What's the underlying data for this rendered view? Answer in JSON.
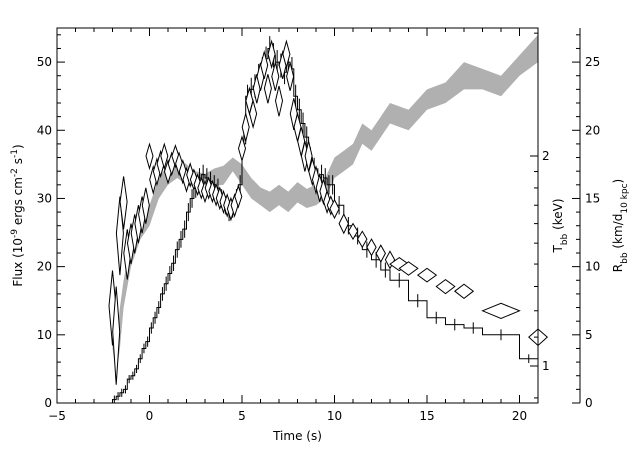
{
  "chart_data": {
    "type": "line",
    "title": "",
    "xlabel": "Time (s)",
    "ylabel_left": {
      "main": "Flux (10",
      "sup1": "-9",
      "mid1": " ergs cm",
      "sup2": "-2",
      "mid2": " s",
      "sup3": "-1",
      "end": ")"
    },
    "ylabel_right_T": {
      "main": "T",
      "sub": "bb",
      "end": " (keV)"
    },
    "ylabel_right_R": {
      "main": "R",
      "sub1": "bb",
      "mid": " (km/d",
      "sub2": "10 kpc",
      "end": ")"
    },
    "xlim": [
      -5,
      21
    ],
    "ylim_left": [
      0,
      55
    ],
    "ylim_right_R": [
      0,
      27.5
    ],
    "T_axis_scale": "log",
    "grid": false,
    "x_ticks": [
      "−5",
      "0",
      "5",
      "10",
      "15",
      "20"
    ],
    "y_left_ticks": [
      "0",
      "10",
      "20",
      "30",
      "40",
      "50"
    ],
    "y_right_R_ticks": [
      "0",
      "5",
      "10",
      "15",
      "20",
      "25"
    ],
    "y_right_T_ticks": [
      "1",
      "2"
    ],
    "series": [
      {
        "style": "histogram",
        "color": "#000000",
        "x": [
          -2.0,
          -1.8,
          -1.6,
          -1.4,
          -1.2,
          -1.0,
          -0.8,
          -0.6,
          -0.4,
          -0.2,
          0.0,
          0.2,
          0.4,
          0.6,
          0.8,
          1.0,
          1.2,
          1.4,
          1.6,
          1.8,
          2.0,
          2.2,
          2.4,
          2.6,
          2.8,
          3.0,
          3.2,
          3.4,
          3.6,
          3.8,
          4.0,
          4.2,
          4.4,
          4.6,
          4.8,
          5.0,
          5.2,
          5.4,
          5.6,
          5.8,
          6.0,
          6.2,
          6.4,
          6.6,
          6.8,
          7.0,
          7.2,
          7.4,
          7.6,
          7.8,
          8.0,
          8.2,
          8.4,
          8.6,
          8.8,
          9.0,
          9.2,
          9.4,
          9.6,
          9.8,
          10.0,
          10.5,
          11.0,
          11.5,
          12.0,
          12.5,
          13.0,
          14.0,
          15.0,
          16.0,
          17.0,
          18.0,
          20.0,
          21.0
        ],
        "y": [
          0.5,
          1.0,
          1.5,
          2.0,
          3.5,
          4.0,
          5.0,
          6.5,
          8.0,
          9.0,
          11.0,
          12.5,
          14.0,
          16.0,
          17.5,
          19.0,
          20.5,
          22.5,
          24.0,
          25.5,
          28.0,
          30.0,
          31.5,
          33.0,
          33.5,
          33.0,
          32.5,
          32.0,
          31.5,
          30.0,
          29.0,
          28.0,
          28.5,
          30.0,
          32.0,
          38.0,
          45.0,
          46.0,
          46.5,
          48.0,
          49.0,
          50.5,
          52.0,
          51.0,
          50.0,
          49.5,
          48.5,
          50.0,
          49.0,
          45.0,
          43.0,
          41.0,
          39.0,
          36.0,
          34.5,
          33.0,
          33.5,
          33.0,
          32.0,
          32.0,
          29.0,
          26.0,
          24.5,
          22.5,
          21.0,
          19.5,
          18.0,
          15.0,
          12.5,
          11.5,
          11.0,
          10.0,
          6.5,
          6.0
        ]
      },
      {
        "style": "diamonds",
        "color": "#000000",
        "x": [
          -2.0,
          -1.8,
          -1.6,
          -1.4,
          -1.2,
          -1.0,
          -0.8,
          -0.6,
          -0.4,
          -0.2,
          0.0,
          0.2,
          0.4,
          0.6,
          0.8,
          1.0,
          1.2,
          1.4,
          1.6,
          1.8,
          2.0,
          2.2,
          2.4,
          2.6,
          2.8,
          3.0,
          3.2,
          3.4,
          3.6,
          3.8,
          4.0,
          4.2,
          4.4,
          4.6,
          4.8,
          5.0,
          5.2,
          5.4,
          5.6,
          5.8,
          6.0,
          6.2,
          6.4,
          6.6,
          6.8,
          7.0,
          7.2,
          7.4,
          7.6,
          7.8,
          8.0,
          8.2,
          8.4,
          8.6,
          8.8,
          9.0,
          9.2,
          9.4,
          9.6,
          9.8,
          10.0,
          10.5,
          11.0,
          11.5,
          12.0,
          12.5,
          13.0,
          13.5,
          14.0,
          15.0,
          16.0,
          17.0,
          19.0,
          21.0
        ],
        "y_keV": [
          1.22,
          1.12,
          1.55,
          1.72,
          1.45,
          1.5,
          1.55,
          1.6,
          1.65,
          1.7,
          2.0,
          1.85,
          1.9,
          1.95,
          2.0,
          1.9,
          1.95,
          2.0,
          1.95,
          1.9,
          1.85,
          1.88,
          1.85,
          1.82,
          1.8,
          1.78,
          1.8,
          1.78,
          1.76,
          1.74,
          1.72,
          1.7,
          1.68,
          1.7,
          1.75,
          2.05,
          2.2,
          2.4,
          2.3,
          2.5,
          2.6,
          2.7,
          2.5,
          2.8,
          2.6,
          2.4,
          2.7,
          2.8,
          2.6,
          2.3,
          2.2,
          2.1,
          2.0,
          2.0,
          1.9,
          1.85,
          1.8,
          1.78,
          1.72,
          1.7,
          1.68,
          1.6,
          1.56,
          1.52,
          1.48,
          1.45,
          1.42,
          1.4,
          1.38,
          1.35,
          1.3,
          1.28,
          1.2,
          1.1
        ],
        "x_halfwidth": [
          0.1,
          0.1,
          0.1,
          0.1,
          0.1,
          0.1,
          0.1,
          0.1,
          0.1,
          0.1,
          0.1,
          0.1,
          0.1,
          0.1,
          0.1,
          0.1,
          0.1,
          0.1,
          0.1,
          0.1,
          0.1,
          0.1,
          0.1,
          0.1,
          0.1,
          0.1,
          0.1,
          0.1,
          0.1,
          0.1,
          0.1,
          0.1,
          0.1,
          0.1,
          0.1,
          0.1,
          0.1,
          0.1,
          0.1,
          0.1,
          0.1,
          0.1,
          0.1,
          0.1,
          0.1,
          0.1,
          0.1,
          0.1,
          0.1,
          0.1,
          0.1,
          0.1,
          0.1,
          0.1,
          0.1,
          0.1,
          0.1,
          0.1,
          0.1,
          0.1,
          0.25,
          0.25,
          0.25,
          0.25,
          0.25,
          0.25,
          0.25,
          0.5,
          0.5,
          0.5,
          0.5,
          0.5,
          1.0,
          0.5
        ],
        "y_err": [
          0.15,
          0.18,
          0.2,
          0.15,
          0.12,
          0.1,
          0.1,
          0.1,
          0.1,
          0.1,
          0.08,
          0.08,
          0.08,
          0.08,
          0.08,
          0.07,
          0.07,
          0.07,
          0.07,
          0.07,
          0.07,
          0.07,
          0.06,
          0.06,
          0.06,
          0.06,
          0.06,
          0.06,
          0.06,
          0.06,
          0.06,
          0.06,
          0.06,
          0.06,
          0.06,
          0.08,
          0.1,
          0.1,
          0.1,
          0.12,
          0.12,
          0.12,
          0.12,
          0.12,
          0.12,
          0.12,
          0.12,
          0.12,
          0.12,
          0.12,
          0.1,
          0.1,
          0.1,
          0.1,
          0.08,
          0.08,
          0.08,
          0.07,
          0.06,
          0.05,
          0.05,
          0.05,
          0.04,
          0.04,
          0.04,
          0.04,
          0.04,
          0.03,
          0.03,
          0.03,
          0.03,
          0.03,
          0.03,
          0.03
        ]
      },
      {
        "style": "band",
        "color": "#b0b0b0",
        "x": [
          -2.0,
          -1.8,
          -1.6,
          -1.4,
          -1.0,
          -0.5,
          0.0,
          0.5,
          1.0,
          1.5,
          2.0,
          2.5,
          3.0,
          3.5,
          4.0,
          4.5,
          5.0,
          5.5,
          6.0,
          6.5,
          7.0,
          7.5,
          8.0,
          8.5,
          9.0,
          9.5,
          10.0,
          10.5,
          11.0,
          11.5,
          12.0,
          12.5,
          13.0,
          14.0,
          15.0,
          16.0,
          17.0,
          18.0,
          19.0,
          20.0,
          21.0
        ],
        "y_low": [
          4.0,
          2.0,
          4.0,
          7.0,
          10.0,
          12.0,
          13.0,
          15.0,
          16.0,
          16.5,
          16.0,
          15.8,
          15.7,
          15.9,
          16.0,
          17.0,
          16.0,
          15.0,
          14.5,
          14.0,
          14.5,
          14.0,
          14.7,
          14.3,
          14.5,
          15.0,
          16.5,
          17.0,
          17.5,
          19.0,
          18.5,
          19.5,
          20.5,
          20.0,
          21.5,
          22.0,
          23.0,
          23.0,
          22.5,
          24.0,
          25.0
        ],
        "y_high": [
          6.0,
          4.0,
          7.0,
          9.0,
          12.0,
          14.0,
          14.5,
          16.5,
          17.5,
          18.0,
          17.5,
          17.0,
          16.8,
          17.2,
          17.4,
          18.0,
          17.5,
          16.5,
          15.8,
          15.5,
          16.0,
          15.5,
          16.2,
          15.7,
          16.0,
          16.5,
          18.0,
          18.5,
          19.0,
          20.5,
          20.0,
          21.0,
          22.0,
          21.5,
          23.0,
          23.5,
          25.0,
          24.5,
          24.0,
          25.5,
          27.0
        ]
      }
    ]
  }
}
